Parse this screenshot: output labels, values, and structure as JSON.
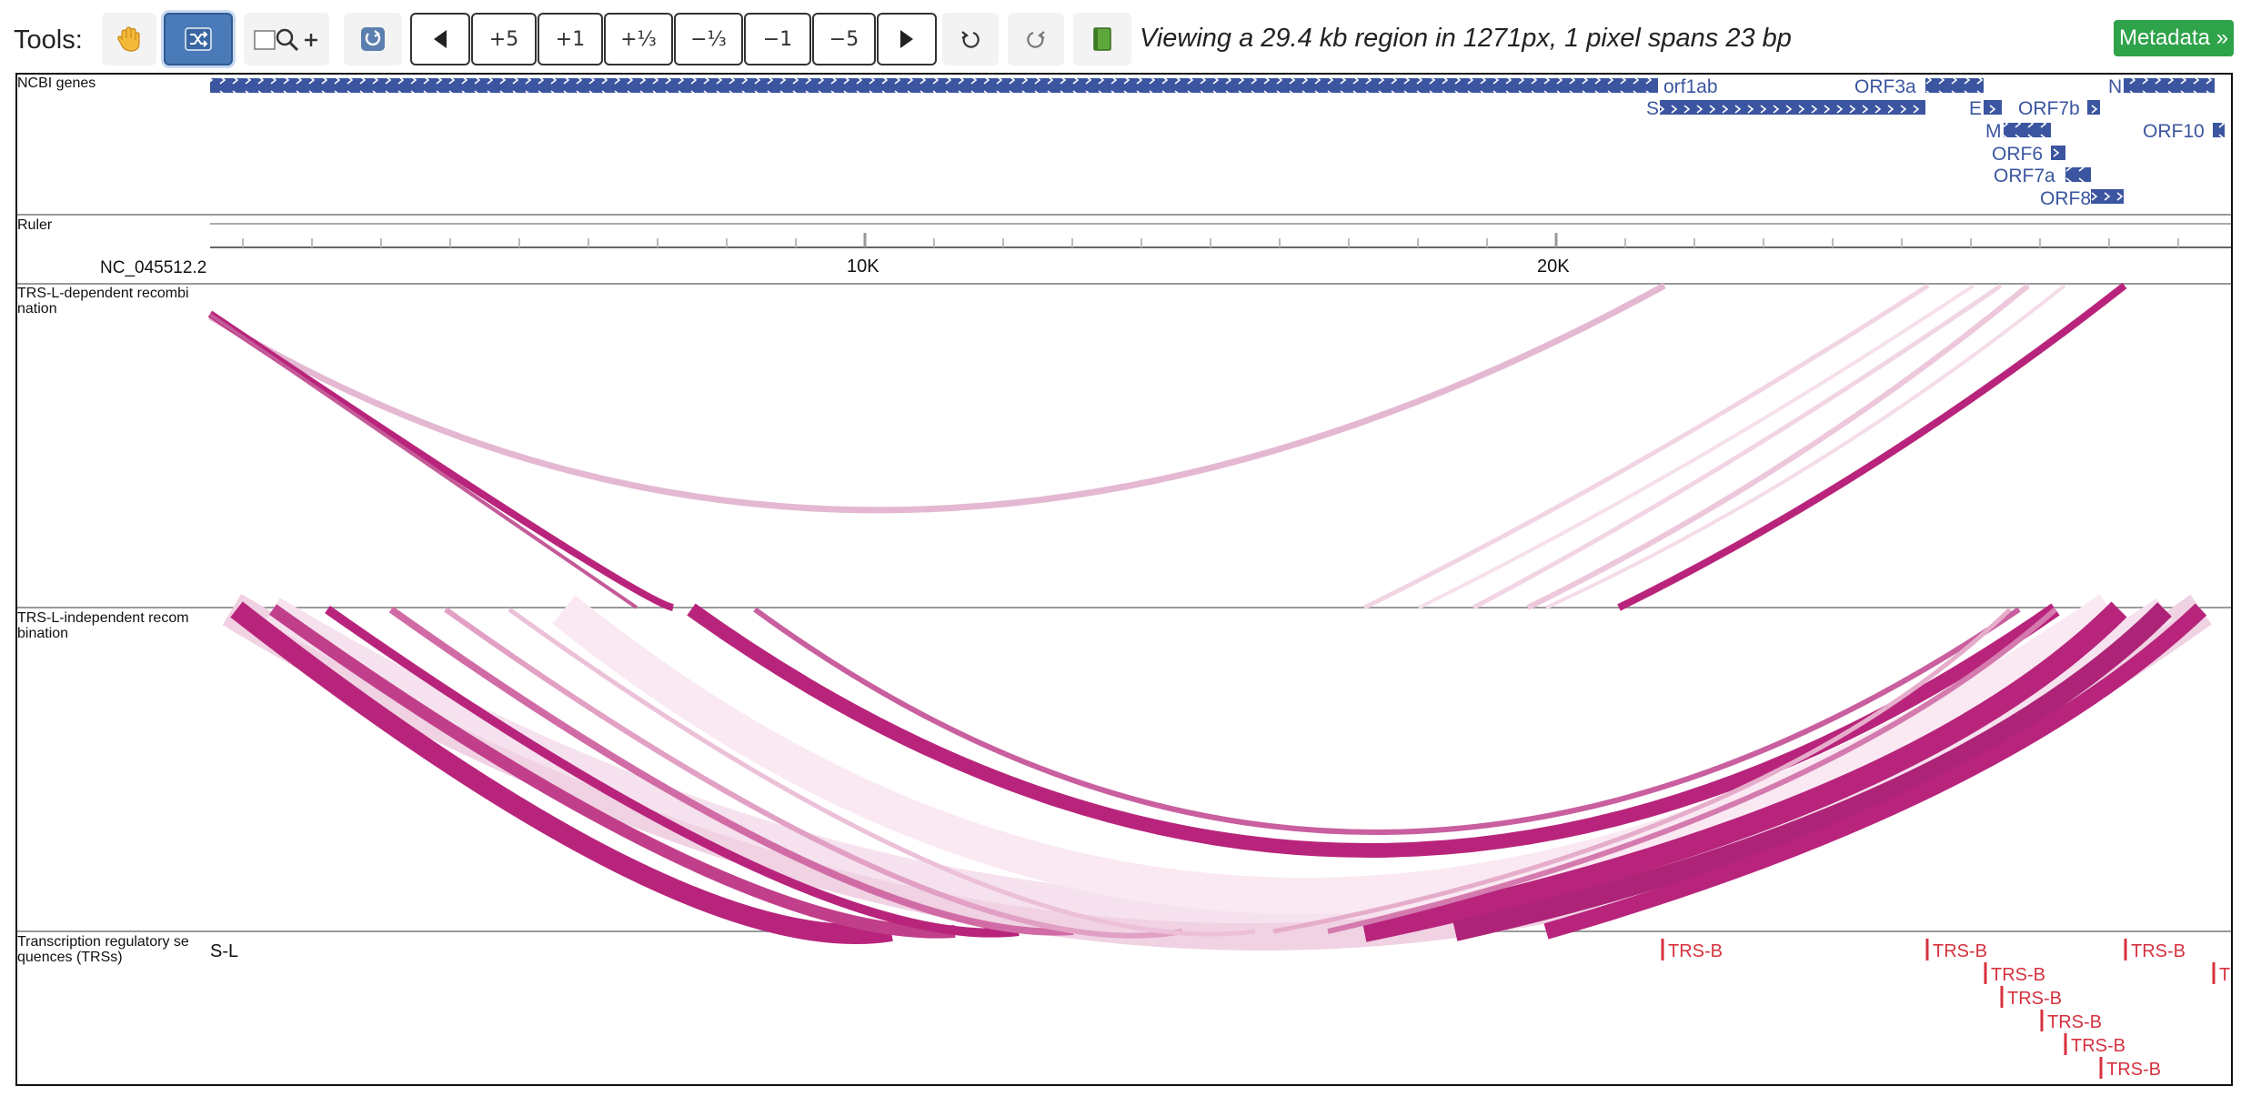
{
  "toolbar": {
    "tools_label": "Tools:",
    "plus5": "+5",
    "plus1": "+1",
    "plus_third": "+⅓",
    "minus_third": "−⅓",
    "minus1": "−1",
    "minus5": "−5",
    "viewing_text": "Viewing a 29.4 kb region in 1271px, 1 pixel spans 23 bp",
    "metadata_label": "Metadata »",
    "icons": [
      "hand-icon",
      "shuffle-icon",
      "zoom-select-icon",
      "refresh-icon",
      "arrow-left-icon",
      "arrow-right-icon",
      "undo-icon",
      "redo-icon",
      "book-icon"
    ]
  },
  "tracks": {
    "genes_label": "NCBI genes",
    "ruler_label": "Ruler",
    "ruler_seq": "NC_045512.2",
    "ruler_ticks": [
      "10K",
      "20K"
    ],
    "trs_dep_label": [
      "TRS-L-dependent recombi",
      "nation"
    ],
    "trs_indep_label": [
      "TRS-L-independent recom",
      "bination"
    ],
    "trs_label": [
      "Transcription regulatory se",
      "quences (TRSs)"
    ]
  },
  "genes": [
    {
      "name": "orf1ab"
    },
    {
      "name": "S"
    },
    {
      "name": "ORF3a"
    },
    {
      "name": "E"
    },
    {
      "name": "M"
    },
    {
      "name": "ORF6"
    },
    {
      "name": "ORF7a"
    },
    {
      "name": "ORF7b"
    },
    {
      "name": "ORF8"
    },
    {
      "name": "N"
    },
    {
      "name": "ORF10"
    }
  ],
  "trs": [
    "S-L",
    "TRS-B",
    "TRS-B",
    "TRS-B",
    "TRS-B",
    "TRS-B",
    "TRS-B",
    "TRS-B",
    "TRS-B",
    "T"
  ],
  "colors": {
    "gene": "#3b55a0",
    "arc": "#b0277f",
    "trs": "#d6313e",
    "active_btn": "#4a7ab8",
    "metadata": "#2fa34a"
  }
}
